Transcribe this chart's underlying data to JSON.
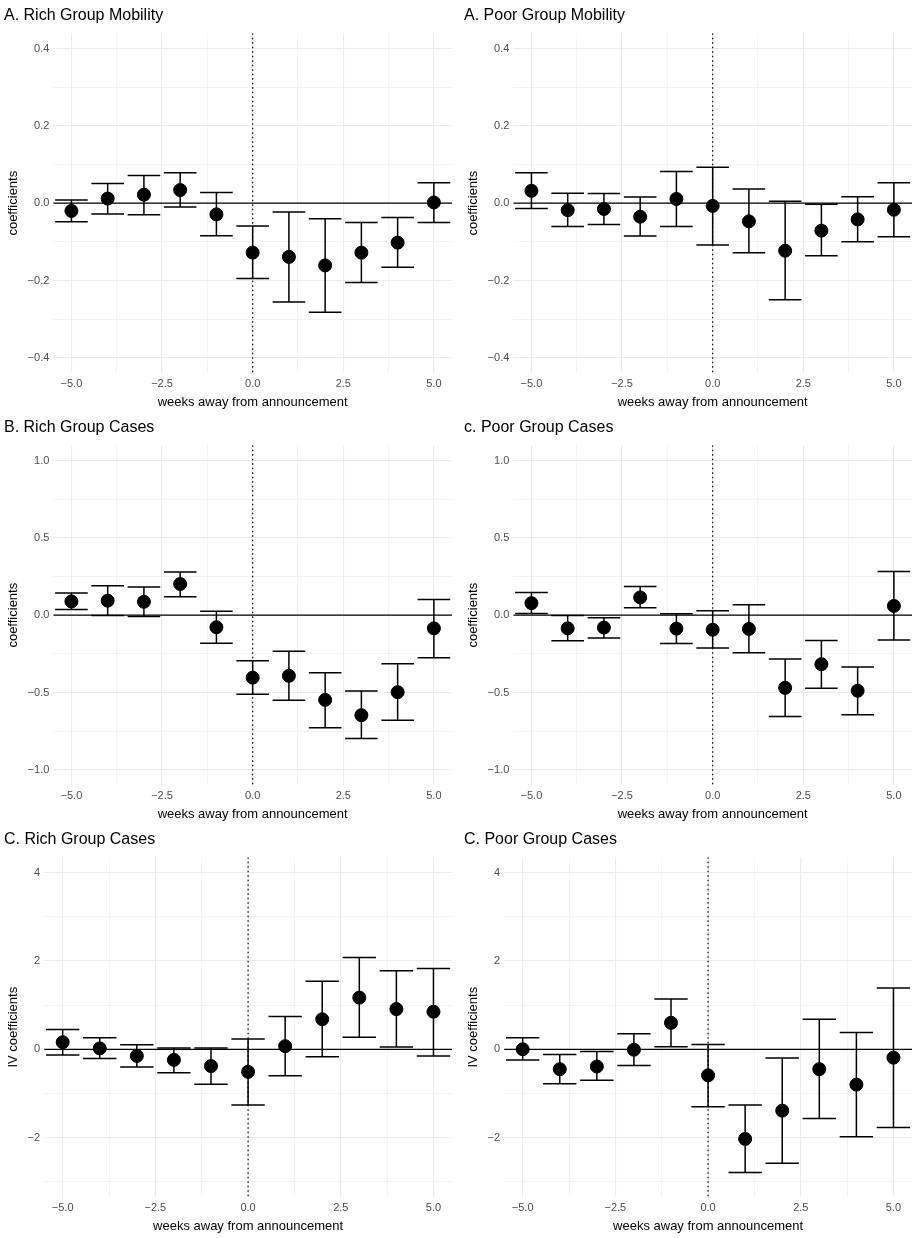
{
  "chart_data": [
    {
      "type": "scatter",
      "title": "A. Rich Group Mobility",
      "xlabel": "weeks away from announcement",
      "ylabel": "coefficients",
      "color": "#000000",
      "marker": "circle",
      "grid": true,
      "x": [
        -5,
        -4,
        -3,
        -2,
        -1,
        0,
        1,
        2,
        3,
        4,
        5
      ],
      "values": [
        -0.02,
        0.012,
        0.022,
        0.034,
        -0.029,
        -0.128,
        -0.139,
        -0.161,
        -0.128,
        -0.102,
        0.002
      ],
      "errors": [
        [
          -0.048,
          0.008
        ],
        [
          -0.028,
          0.051
        ],
        [
          -0.03,
          0.072
        ],
        [
          -0.01,
          0.079
        ],
        [
          -0.084,
          0.028
        ],
        [
          -0.195,
          -0.059
        ],
        [
          -0.256,
          -0.023
        ],
        [
          -0.282,
          -0.04
        ],
        [
          -0.205,
          -0.05
        ],
        [
          -0.166,
          -0.037
        ],
        [
          -0.05,
          0.053
        ]
      ],
      "xlim": [
        -5.5,
        5.5
      ],
      "xticks": [
        {
          "value": -5,
          "label": "−5.0"
        },
        {
          "value": -3.75,
          "label": null
        },
        {
          "value": -2.5,
          "label": "−2.5"
        },
        {
          "value": -1.25,
          "label": null
        },
        {
          "value": 0,
          "label": "0.0"
        },
        {
          "value": 1.25,
          "label": null
        },
        {
          "value": 2.5,
          "label": "2.5"
        },
        {
          "value": 3.75,
          "label": null
        },
        {
          "value": 5,
          "label": "5.0"
        }
      ],
      "ylim": [
        -0.44,
        0.44
      ],
      "yticks": [
        {
          "value": -0.4,
          "label": "−0.4"
        },
        {
          "value": -0.3,
          "label": null
        },
        {
          "value": -0.2,
          "label": "−0.2"
        },
        {
          "value": -0.1,
          "label": null
        },
        {
          "value": 0,
          "label": "0.0"
        },
        {
          "value": 0.1,
          "label": null
        },
        {
          "value": 0.2,
          "label": "0.2"
        },
        {
          "value": 0.3,
          "label": null
        },
        {
          "value": 0.4,
          "label": "0.4"
        }
      ],
      "ref_lines": [
        {
          "axis": "y",
          "value": 0,
          "line_style": "solid",
          "color": "#000000"
        },
        {
          "axis": "x",
          "value": 0,
          "line_style": "dotted",
          "color": "#000000"
        }
      ]
    },
    {
      "type": "scatter",
      "title": "A. Poor Group Mobility",
      "xlabel": "weeks away from announcement",
      "ylabel": "coefficients",
      "color": "#000000",
      "marker": "circle",
      "grid": true,
      "x": [
        -5,
        -4,
        -3,
        -2,
        -1,
        0,
        1,
        2,
        3,
        4,
        5
      ],
      "values": [
        0.032,
        -0.018,
        -0.015,
        -0.035,
        0.011,
        -0.007,
        -0.047,
        -0.123,
        -0.071,
        -0.042,
        -0.017
      ],
      "errors": [
        [
          -0.014,
          0.079
        ],
        [
          -0.06,
          0.026
        ],
        [
          -0.055,
          0.025
        ],
        [
          -0.085,
          0.016
        ],
        [
          -0.06,
          0.082
        ],
        [
          -0.108,
          0.093
        ],
        [
          -0.128,
          0.037
        ],
        [
          -0.25,
          0.005
        ],
        [
          -0.136,
          -0.003
        ],
        [
          -0.1,
          0.017
        ],
        [
          -0.087,
          0.053
        ]
      ],
      "xlim": [
        -5.5,
        5.5
      ],
      "xticks": [
        {
          "value": -5,
          "label": "−5.0"
        },
        {
          "value": -3.75,
          "label": null
        },
        {
          "value": -2.5,
          "label": "−2.5"
        },
        {
          "value": -1.25,
          "label": null
        },
        {
          "value": 0,
          "label": "0.0"
        },
        {
          "value": 1.25,
          "label": null
        },
        {
          "value": 2.5,
          "label": "2.5"
        },
        {
          "value": 3.75,
          "label": null
        },
        {
          "value": 5,
          "label": "5.0"
        }
      ],
      "ylim": [
        -0.44,
        0.44
      ],
      "yticks": [
        {
          "value": -0.4,
          "label": "−0.4"
        },
        {
          "value": -0.3,
          "label": null
        },
        {
          "value": -0.2,
          "label": "−0.2"
        },
        {
          "value": -0.1,
          "label": null
        },
        {
          "value": 0,
          "label": "0.0"
        },
        {
          "value": 0.1,
          "label": null
        },
        {
          "value": 0.2,
          "label": "0.2"
        },
        {
          "value": 0.3,
          "label": null
        },
        {
          "value": 0.4,
          "label": "0.4"
        }
      ],
      "ref_lines": [
        {
          "axis": "y",
          "value": 0,
          "line_style": "solid",
          "color": "#000000"
        },
        {
          "axis": "x",
          "value": 0,
          "line_style": "dotted",
          "color": "#000000"
        }
      ]
    },
    {
      "type": "scatter",
      "title": "B. Rich Group Cases",
      "xlabel": "weeks away from announcement",
      "ylabel": "coefficients",
      "color": "#000000",
      "marker": "circle",
      "grid": true,
      "x": [
        -5,
        -4,
        -3,
        -2,
        -1,
        0,
        1,
        2,
        3,
        4,
        5
      ],
      "values": [
        0.089,
        0.094,
        0.087,
        0.202,
        -0.078,
        -0.404,
        -0.392,
        -0.548,
        -0.647,
        -0.498,
        -0.085
      ],
      "errors": [
        [
          0.037,
          0.144
        ],
        [
          -0.002,
          0.19
        ],
        [
          -0.009,
          0.183
        ],
        [
          0.119,
          0.28
        ],
        [
          -0.181,
          0.025
        ],
        [
          -0.511,
          -0.294
        ],
        [
          -0.55,
          -0.234
        ],
        [
          -0.729,
          -0.372
        ],
        [
          -0.798,
          -0.491
        ],
        [
          -0.679,
          -0.314
        ],
        [
          -0.275,
          0.101
        ]
      ],
      "xlim": [
        -5.5,
        5.5
      ],
      "xticks": [
        {
          "value": -5,
          "label": "−5.0"
        },
        {
          "value": -3.75,
          "label": null
        },
        {
          "value": -2.5,
          "label": "−2.5"
        },
        {
          "value": -1.25,
          "label": null
        },
        {
          "value": 0,
          "label": "0.0"
        },
        {
          "value": 1.25,
          "label": null
        },
        {
          "value": 2.5,
          "label": "2.5"
        },
        {
          "value": 3.75,
          "label": null
        },
        {
          "value": 5,
          "label": "5.0"
        }
      ],
      "ylim": [
        -1.1,
        1.1
      ],
      "yticks": [
        {
          "value": -1,
          "label": "−1.0"
        },
        {
          "value": -0.75,
          "label": null
        },
        {
          "value": -0.5,
          "label": "−0.5"
        },
        {
          "value": -0.25,
          "label": null
        },
        {
          "value": 0,
          "label": "0.0"
        },
        {
          "value": 0.25,
          "label": null
        },
        {
          "value": 0.5,
          "label": "0.5"
        },
        {
          "value": 0.75,
          "label": null
        },
        {
          "value": 1,
          "label": "1.0"
        }
      ],
      "ref_lines": [
        {
          "axis": "y",
          "value": 0,
          "line_style": "solid",
          "color": "#000000"
        },
        {
          "axis": "x",
          "value": 0,
          "line_style": "dotted",
          "color": "#000000"
        }
      ]
    },
    {
      "type": "scatter",
      "title": "c. Poor Group Cases",
      "xlabel": "weeks away from announcement",
      "ylabel": "coefficients",
      "color": "#000000",
      "marker": "circle",
      "grid": true,
      "x": [
        -5,
        -4,
        -3,
        -2,
        -1,
        0,
        1,
        2,
        3,
        4,
        5
      ],
      "values": [
        0.078,
        -0.085,
        -0.08,
        0.115,
        -0.087,
        -0.094,
        -0.089,
        -0.47,
        -0.317,
        -0.489,
        0.06
      ],
      "errors": [
        [
          0.011,
          0.147
        ],
        [
          -0.165,
          -0.002
        ],
        [
          -0.147,
          -0.016
        ],
        [
          0.048,
          0.186
        ],
        [
          -0.183,
          0.009
        ],
        [
          -0.213,
          0.028
        ],
        [
          -0.243,
          0.067
        ],
        [
          -0.656,
          -0.284
        ],
        [
          -0.472,
          -0.163
        ],
        [
          -0.644,
          -0.335
        ],
        [
          -0.161,
          0.282
        ]
      ],
      "xlim": [
        -5.5,
        5.5
      ],
      "xticks": [
        {
          "value": -5,
          "label": "−5.0"
        },
        {
          "value": -3.75,
          "label": null
        },
        {
          "value": -2.5,
          "label": "−2.5"
        },
        {
          "value": -1.25,
          "label": null
        },
        {
          "value": 0,
          "label": "0.0"
        },
        {
          "value": 1.25,
          "label": null
        },
        {
          "value": 2.5,
          "label": "2.5"
        },
        {
          "value": 3.75,
          "label": null
        },
        {
          "value": 5,
          "label": "5.0"
        }
      ],
      "ylim": [
        -1.1,
        1.1
      ],
      "yticks": [
        {
          "value": -1,
          "label": "−1.0"
        },
        {
          "value": -0.75,
          "label": null
        },
        {
          "value": -0.5,
          "label": "−0.5"
        },
        {
          "value": -0.25,
          "label": null
        },
        {
          "value": 0,
          "label": "0.0"
        },
        {
          "value": 0.25,
          "label": null
        },
        {
          "value": 0.5,
          "label": "0.5"
        },
        {
          "value": 0.75,
          "label": null
        },
        {
          "value": 1,
          "label": "1.0"
        }
      ],
      "ref_lines": [
        {
          "axis": "y",
          "value": 0,
          "line_style": "solid",
          "color": "#000000"
        },
        {
          "axis": "x",
          "value": 0,
          "line_style": "dotted",
          "color": "#000000"
        }
      ]
    },
    {
      "type": "scatter",
      "title": "C. Rich Group Cases",
      "xlabel": "weeks away from announcement",
      "ylabel": "IV coefficients",
      "color": "#000000",
      "marker": "circle",
      "grid": true,
      "x": [
        -5,
        -4,
        -3,
        -2,
        -1,
        0,
        1,
        2,
        3,
        4,
        5
      ],
      "values": [
        0.16,
        0.02,
        -0.15,
        -0.24,
        -0.38,
        -0.51,
        0.07,
        0.68,
        1.17,
        0.91,
        0.85
      ],
      "errors": [
        [
          -0.13,
          0.45
        ],
        [
          -0.21,
          0.26
        ],
        [
          -0.4,
          0.1
        ],
        [
          -0.53,
          0.03
        ],
        [
          -0.79,
          0.03
        ],
        [
          -1.26,
          0.23
        ],
        [
          -0.6,
          0.74
        ],
        [
          -0.17,
          1.54
        ],
        [
          0.27,
          2.08
        ],
        [
          0.05,
          1.78
        ],
        [
          -0.15,
          1.83
        ]
      ],
      "xlim": [
        -5.5,
        5.5
      ],
      "xticks": [
        {
          "value": -5,
          "label": "−5.0"
        },
        {
          "value": -3.75,
          "label": null
        },
        {
          "value": -2.5,
          "label": "−2.5"
        },
        {
          "value": -1.25,
          "label": null
        },
        {
          "value": 0,
          "label": "0.0"
        },
        {
          "value": 1.25,
          "label": null
        },
        {
          "value": 2.5,
          "label": "2.5"
        },
        {
          "value": 3.75,
          "label": null
        },
        {
          "value": 5,
          "label": "5.0"
        }
      ],
      "ylim": [
        -3.35,
        4.35
      ],
      "yticks": [
        {
          "value": -3,
          "label": null
        },
        {
          "value": -2,
          "label": "−2"
        },
        {
          "value": -1,
          "label": null
        },
        0,
        {
          "value": 1,
          "label": null
        },
        2,
        {
          "value": 3,
          "label": null
        },
        4
      ],
      "ref_lines": [
        {
          "axis": "y",
          "value": 0,
          "line_style": "solid",
          "color": "#000000"
        },
        {
          "axis": "x",
          "value": 0,
          "line_style": "dotted",
          "color": "#000000"
        }
      ]
    },
    {
      "type": "scatter",
      "title": "C. Poor Group Cases",
      "xlabel": "weeks away from announcement",
      "ylabel": "IV coefficients",
      "color": "#000000",
      "marker": "circle",
      "grid": true,
      "x": [
        -5,
        -4,
        -3,
        -2,
        -1,
        0,
        1,
        2,
        3,
        4,
        5
      ],
      "values": [
        0,
        -0.45,
        -0.39,
        -0.01,
        0.6,
        -0.59,
        -2.03,
        -1.39,
        -0.45,
        -0.8,
        -0.19
      ],
      "errors": [
        [
          -0.24,
          0.26
        ],
        [
          -0.78,
          -0.12
        ],
        [
          -0.7,
          -0.05
        ],
        [
          -0.37,
          0.35
        ],
        [
          0.06,
          1.14
        ],
        [
          -1.3,
          0.11
        ],
        [
          -2.79,
          -1.26
        ],
        [
          -2.58,
          -0.2
        ],
        [
          -1.57,
          0.68
        ],
        [
          -1.98,
          0.38
        ],
        [
          -1.77,
          1.39
        ]
      ],
      "xlim": [
        -5.5,
        5.5
      ],
      "xticks": [
        {
          "value": -5,
          "label": "−5.0"
        },
        {
          "value": -3.75,
          "label": null
        },
        {
          "value": -2.5,
          "label": "−2.5"
        },
        {
          "value": -1.25,
          "label": null
        },
        {
          "value": 0,
          "label": "0.0"
        },
        {
          "value": 1.25,
          "label": null
        },
        {
          "value": 2.5,
          "label": "2.5"
        },
        {
          "value": 3.75,
          "label": null
        },
        {
          "value": 5,
          "label": "5.0"
        }
      ],
      "ylim": [
        -3.35,
        4.35
      ],
      "yticks": [
        {
          "value": -3,
          "label": null
        },
        {
          "value": -2,
          "label": "−2"
        },
        {
          "value": -1,
          "label": null
        },
        0,
        {
          "value": 1,
          "label": null
        },
        2,
        {
          "value": 3,
          "label": null
        },
        4
      ],
      "ref_lines": [
        {
          "axis": "y",
          "value": 0,
          "line_style": "solid",
          "color": "#000000"
        },
        {
          "axis": "x",
          "value": 0,
          "line_style": "dotted",
          "color": "#000000"
        }
      ]
    }
  ]
}
